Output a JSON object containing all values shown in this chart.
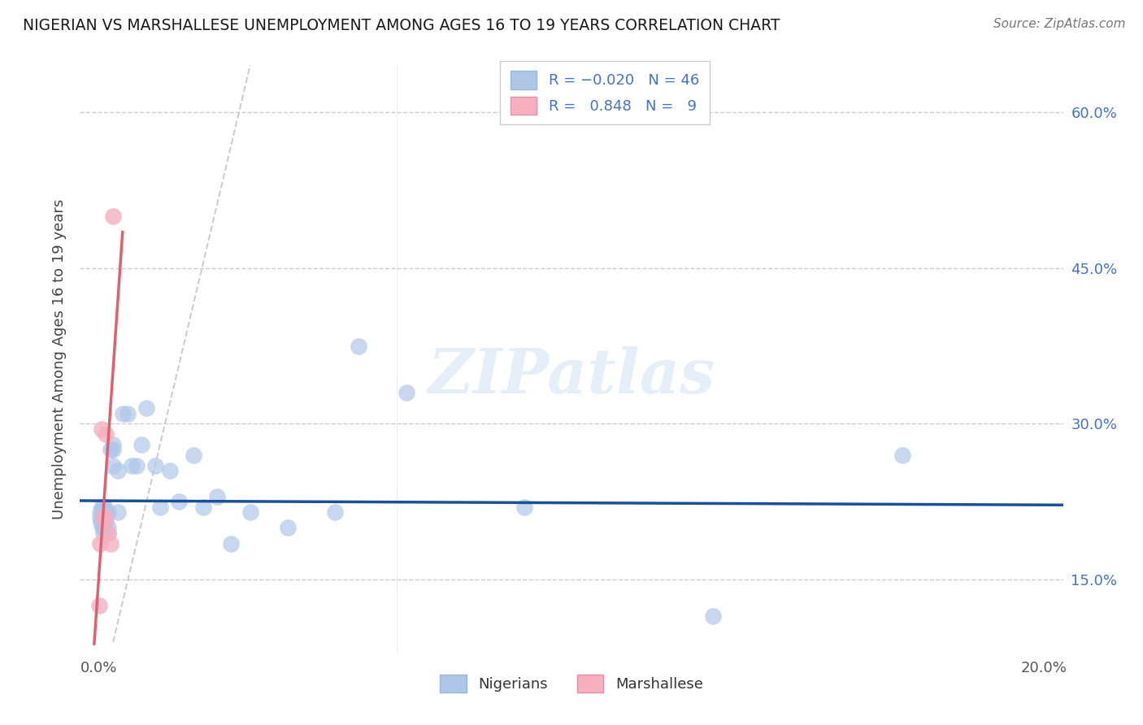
{
  "title": "NIGERIAN VS MARSHALLESE UNEMPLOYMENT AMONG AGES 16 TO 19 YEARS CORRELATION CHART",
  "source": "Source: ZipAtlas.com",
  "ylabel": "Unemployment Among Ages 16 to 19 years",
  "nigerian_R": "-0.020",
  "nigerian_N": "46",
  "marshallese_R": "0.848",
  "marshallese_N": "9",
  "blue_fill": "#aec6e8",
  "pink_fill": "#f5b0c0",
  "blue_line": "#1a4f9e",
  "pink_line": "#e06070",
  "ref_line_color": "#c8c8c8",
  "right_tick_color": "#4472c4",
  "watermark": "ZIPatlas",
  "nigerian_x": [
    0.0002,
    0.0003,
    0.0004,
    0.0005,
    0.0006,
    0.0007,
    0.0008,
    0.001,
    0.001,
    0.001,
    0.0012,
    0.0013,
    0.0014,
    0.0015,
    0.0015,
    0.002,
    0.002,
    0.002,
    0.0025,
    0.003,
    0.003,
    0.003,
    0.004,
    0.004,
    0.005,
    0.006,
    0.007,
    0.008,
    0.009,
    0.01,
    0.012,
    0.013,
    0.015,
    0.017,
    0.02,
    0.022,
    0.025,
    0.028,
    0.032,
    0.04,
    0.05,
    0.055,
    0.065,
    0.09,
    0.13,
    0.17
  ],
  "nigerian_y": [
    0.21,
    0.215,
    0.205,
    0.22,
    0.21,
    0.215,
    0.2,
    0.22,
    0.2,
    0.195,
    0.22,
    0.21,
    0.21,
    0.205,
    0.215,
    0.215,
    0.2,
    0.195,
    0.275,
    0.28,
    0.275,
    0.26,
    0.255,
    0.215,
    0.31,
    0.31,
    0.26,
    0.26,
    0.28,
    0.315,
    0.26,
    0.22,
    0.255,
    0.225,
    0.27,
    0.22,
    0.23,
    0.185,
    0.215,
    0.2,
    0.215,
    0.375,
    0.33,
    0.22,
    0.115,
    0.27
  ],
  "marshallese_x": [
    0.0001,
    0.0003,
    0.0006,
    0.001,
    0.0012,
    0.0015,
    0.002,
    0.0025,
    0.003
  ],
  "marshallese_y": [
    0.125,
    0.185,
    0.295,
    0.21,
    0.21,
    0.29,
    0.195,
    0.185,
    0.5
  ],
  "xlim": [
    -0.004,
    0.204
  ],
  "ylim": [
    0.08,
    0.645
  ],
  "yticks_right": [
    0.15,
    0.3,
    0.45,
    0.6
  ],
  "ytick_labels_right": [
    "15.0%",
    "30.0%",
    "45.0%",
    "60.0%"
  ],
  "xticks": [
    0.0,
    0.05,
    0.1,
    0.15,
    0.2
  ],
  "xtick_labels": [
    "0.0%",
    "",
    "",
    "",
    "20.0%"
  ]
}
